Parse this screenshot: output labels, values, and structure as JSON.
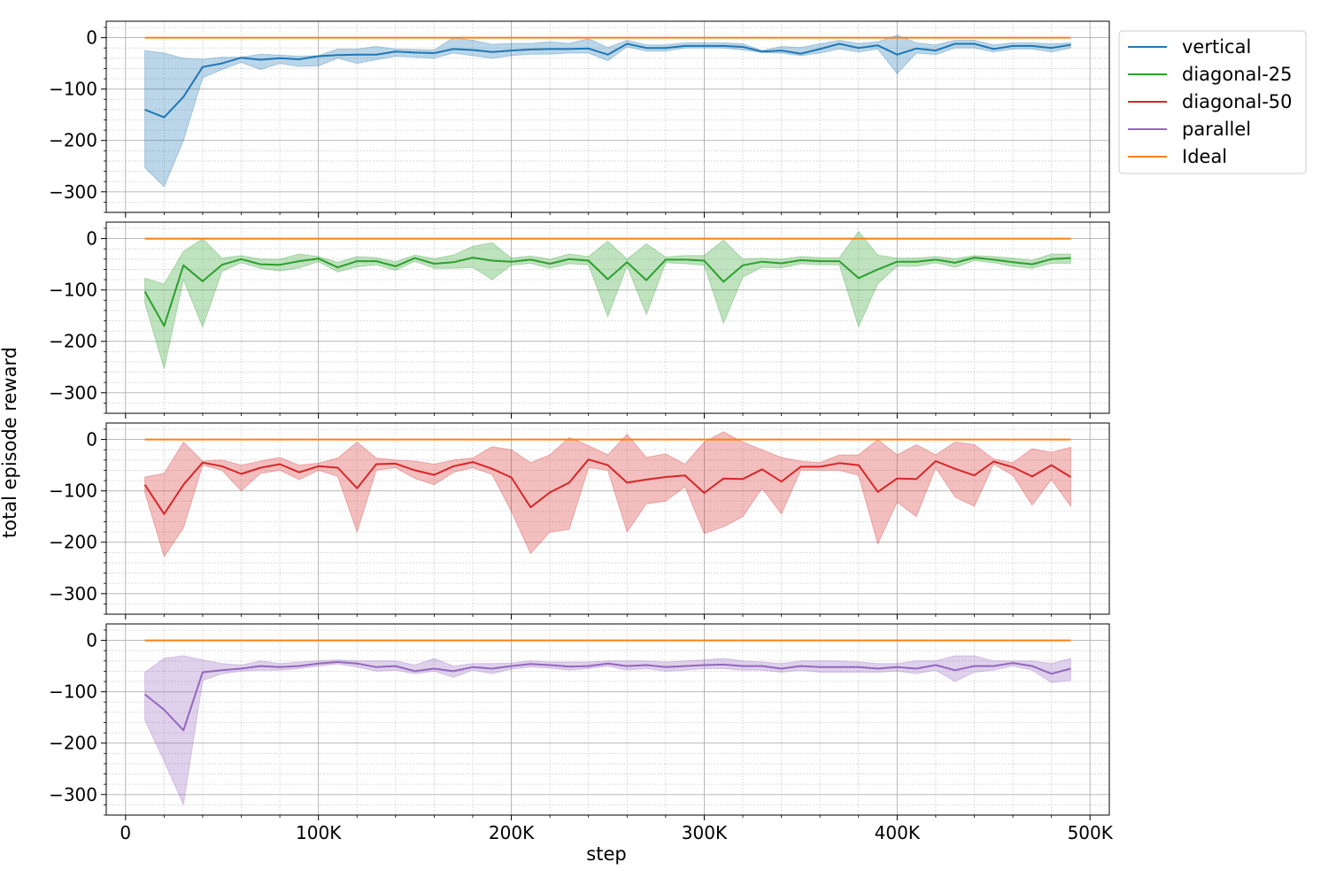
{
  "chart_data": {
    "type": "line",
    "xlabel": "step",
    "ylabel": "total episode reward",
    "xlim": [
      -10000,
      510000
    ],
    "ylim": [
      -340,
      32
    ],
    "x_ticks": [
      0,
      100000,
      200000,
      300000,
      400000,
      500000
    ],
    "x_tick_labels": [
      "0",
      "100K",
      "200K",
      "300K",
      "400K",
      "500K"
    ],
    "y_ticks": [
      0,
      -100,
      -200,
      -300
    ],
    "y_tick_labels": [
      "0",
      "−100",
      "−200",
      "−300"
    ],
    "grid": true,
    "legend_position": "outside-top-right",
    "x": [
      10000,
      20000,
      30000,
      40000,
      50000,
      60000,
      70000,
      80000,
      90000,
      100000,
      110000,
      120000,
      130000,
      140000,
      150000,
      160000,
      170000,
      180000,
      190000,
      200000,
      210000,
      220000,
      230000,
      240000,
      250000,
      260000,
      270000,
      280000,
      290000,
      300000,
      310000,
      320000,
      330000,
      340000,
      350000,
      360000,
      370000,
      380000,
      390000,
      400000,
      410000,
      420000,
      430000,
      440000,
      450000,
      460000,
      470000,
      480000,
      490000
    ],
    "ideal": {
      "name": "Ideal",
      "color": "#ff7f0e",
      "value": 0
    },
    "panels": [
      {
        "name": "vertical",
        "color": "#1f77b4",
        "mean": [
          -140,
          -155,
          -115,
          -57,
          -50,
          -39,
          -43,
          -40,
          -42,
          -36,
          -34,
          -33,
          -33,
          -27,
          -29,
          -30,
          -22,
          -24,
          -28,
          -25,
          -23,
          -22,
          -22,
          -21,
          -33,
          -12,
          -20,
          -20,
          -16,
          -16,
          -16,
          -18,
          -27,
          -25,
          -31,
          -22,
          -12,
          -20,
          -15,
          -33,
          -21,
          -25,
          -12,
          -12,
          -22,
          -16,
          -16,
          -20,
          -14
        ],
        "upper": [
          -25,
          -30,
          -40,
          -42,
          -38,
          -38,
          -32,
          -34,
          -36,
          -35,
          -22,
          -22,
          -17,
          -22,
          -23,
          -24,
          0,
          -5,
          -13,
          -11,
          -11,
          -8,
          -11,
          -2,
          -19,
          -5,
          -14,
          -14,
          -10,
          -10,
          -10,
          -12,
          -25,
          -17,
          -19,
          -12,
          -5,
          -11,
          -8,
          5,
          -10,
          -14,
          -5,
          -5,
          -14,
          -10,
          -10,
          -12,
          -10
        ],
        "lower": [
          -253,
          -290,
          -200,
          -78,
          -62,
          -48,
          -62,
          -50,
          -56,
          -55,
          -40,
          -50,
          -43,
          -36,
          -38,
          -40,
          -30,
          -35,
          -40,
          -35,
          -32,
          -32,
          -30,
          -30,
          -45,
          -18,
          -26,
          -26,
          -20,
          -20,
          -20,
          -24,
          -29,
          -30,
          -35,
          -30,
          -22,
          -28,
          -22,
          -70,
          -30,
          -33,
          -20,
          -20,
          -28,
          -22,
          -22,
          -28,
          -20
        ]
      },
      {
        "name": "diagonal-25",
        "color": "#2ca02c",
        "mean": [
          -103,
          -170,
          -52,
          -83,
          -51,
          -40,
          -50,
          -51,
          -44,
          -39,
          -56,
          -44,
          -44,
          -54,
          -38,
          -49,
          -46,
          -37,
          -43,
          -45,
          -41,
          -49,
          -40,
          -43,
          -79,
          -46,
          -81,
          -41,
          -41,
          -43,
          -84,
          -52,
          -45,
          -48,
          -42,
          -44,
          -44,
          -77,
          -60,
          -45,
          -45,
          -41,
          -47,
          -37,
          -41,
          -46,
          -50,
          -40,
          -38
        ],
        "upper": [
          -77,
          -88,
          -25,
          0,
          -38,
          -33,
          -40,
          -40,
          -30,
          -35,
          -46,
          -35,
          -37,
          -45,
          -32,
          -39,
          -32,
          -15,
          -8,
          -38,
          -34,
          -40,
          -30,
          -35,
          -5,
          -40,
          -10,
          -36,
          -33,
          -33,
          -3,
          -40,
          -38,
          -40,
          -35,
          -37,
          -37,
          14,
          -32,
          -38,
          -38,
          -35,
          -39,
          -33,
          -35,
          -38,
          -42,
          -30,
          -30
        ],
        "lower": [
          -125,
          -253,
          -80,
          -172,
          -64,
          -47,
          -58,
          -63,
          -57,
          -45,
          -65,
          -55,
          -51,
          -62,
          -44,
          -58,
          -58,
          -56,
          -80,
          -52,
          -48,
          -58,
          -49,
          -51,
          -152,
          -53,
          -148,
          -47,
          -49,
          -52,
          -165,
          -75,
          -56,
          -57,
          -49,
          -51,
          -51,
          -172,
          -88,
          -54,
          -54,
          -47,
          -56,
          -43,
          -47,
          -54,
          -58,
          -48,
          -48
        ]
      },
      {
        "name": "diagonal-50",
        "color": "#d62728",
        "mean": [
          -88,
          -145,
          -88,
          -45,
          -52,
          -67,
          -55,
          -48,
          -64,
          -52,
          -55,
          -95,
          -48,
          -47,
          -60,
          -69,
          -52,
          -44,
          -57,
          -74,
          -132,
          -103,
          -84,
          -39,
          -50,
          -84,
          -78,
          -73,
          -70,
          -104,
          -76,
          -77,
          -58,
          -82,
          -53,
          -53,
          -46,
          -50,
          -102,
          -76,
          -77,
          -42,
          -57,
          -70,
          -43,
          -54,
          -72,
          -50,
          -73
        ],
        "upper": [
          -73,
          -66,
          -5,
          -42,
          -40,
          -50,
          -42,
          -35,
          -50,
          -46,
          -36,
          -5,
          -36,
          -40,
          -42,
          -48,
          -40,
          -36,
          -14,
          -20,
          -45,
          -30,
          4,
          -12,
          -30,
          10,
          -35,
          -28,
          -48,
          -5,
          15,
          -5,
          -20,
          -35,
          -42,
          -45,
          -30,
          -30,
          0,
          -30,
          -10,
          -30,
          -5,
          -10,
          -38,
          -45,
          -18,
          -25,
          -15
        ],
        "lower": [
          -103,
          -228,
          -172,
          -50,
          -60,
          -100,
          -66,
          -60,
          -78,
          -60,
          -72,
          -180,
          -60,
          -55,
          -76,
          -88,
          -64,
          -55,
          -68,
          -140,
          -222,
          -180,
          -175,
          -55,
          -60,
          -180,
          -125,
          -120,
          -92,
          -183,
          -170,
          -150,
          -95,
          -145,
          -60,
          -60,
          -60,
          -70,
          -203,
          -122,
          -150,
          -55,
          -112,
          -130,
          -48,
          -70,
          -128,
          -78,
          -130
        ]
      },
      {
        "name": "parallel",
        "color": "#9467bd",
        "mean": [
          -105,
          -135,
          -175,
          -62,
          -58,
          -55,
          -50,
          -52,
          -50,
          -45,
          -42,
          -45,
          -52,
          -50,
          -60,
          -55,
          -60,
          -52,
          -55,
          -50,
          -46,
          -48,
          -51,
          -50,
          -45,
          -50,
          -48,
          -52,
          -50,
          -48,
          -47,
          -50,
          -50,
          -55,
          -50,
          -52,
          -52,
          -52,
          -55,
          -52,
          -55,
          -48,
          -58,
          -50,
          -50,
          -44,
          -50,
          -65,
          -55
        ],
        "upper": [
          -62,
          -35,
          -30,
          -38,
          -45,
          -48,
          -40,
          -45,
          -42,
          -40,
          -38,
          -40,
          -40,
          -40,
          -48,
          -35,
          -50,
          -45,
          -45,
          -44,
          -40,
          -42,
          -42,
          -42,
          -40,
          -40,
          -40,
          -42,
          -40,
          -38,
          -35,
          -40,
          -42,
          -45,
          -40,
          -40,
          -40,
          -42,
          -45,
          -45,
          -40,
          -40,
          -30,
          -30,
          -40,
          -40,
          -40,
          -45,
          -35
        ],
        "lower": [
          -155,
          -235,
          -320,
          -78,
          -65,
          -60,
          -58,
          -58,
          -55,
          -50,
          -46,
          -52,
          -60,
          -58,
          -65,
          -60,
          -72,
          -58,
          -65,
          -56,
          -52,
          -54,
          -58,
          -55,
          -50,
          -58,
          -55,
          -60,
          -58,
          -55,
          -55,
          -58,
          -58,
          -62,
          -58,
          -62,
          -62,
          -62,
          -62,
          -60,
          -65,
          -58,
          -80,
          -62,
          -58,
          -50,
          -58,
          -82,
          -78
        ]
      }
    ]
  }
}
